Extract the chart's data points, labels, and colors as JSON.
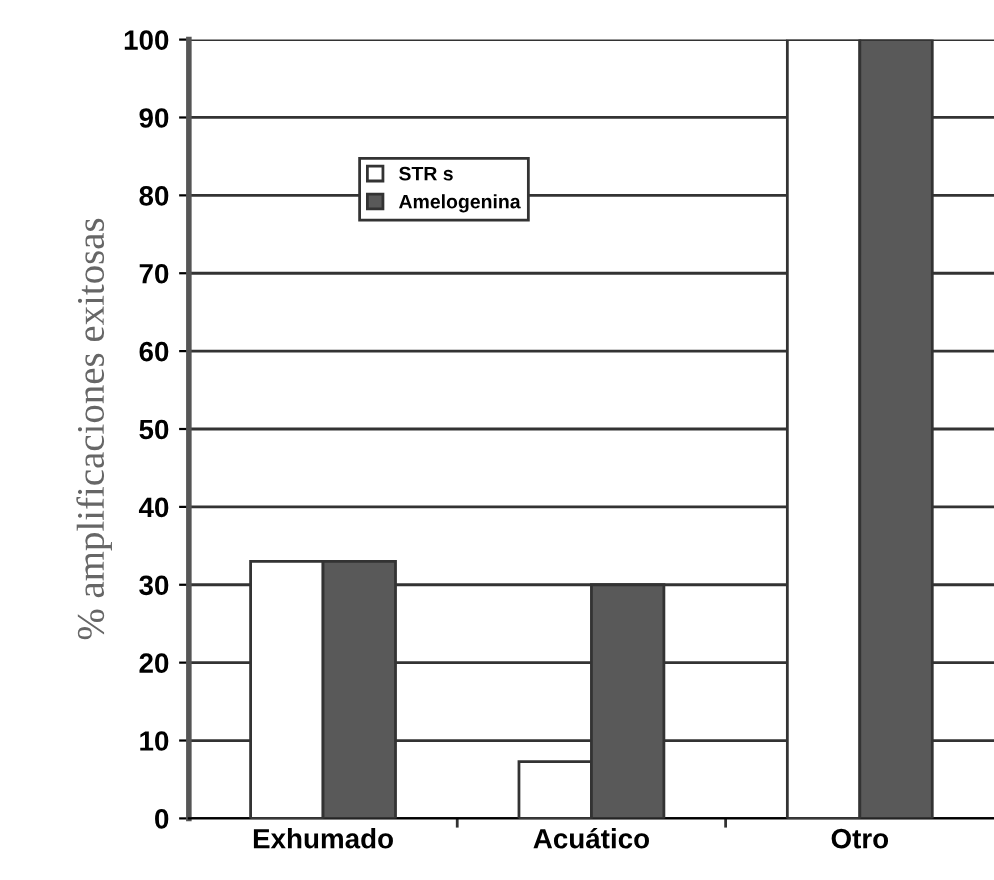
{
  "chart_data": {
    "type": "bar",
    "ylabel": "% amplificaciones exitosas",
    "categories": [
      "Exhumado",
      "Acuático",
      "Otro"
    ],
    "series": [
      {
        "name": "STR s",
        "color": "#ffffff",
        "values": [
          33,
          7.3,
          100
        ]
      },
      {
        "name": "Amelogenina",
        "color": "#595959",
        "values": [
          33,
          30,
          100
        ]
      }
    ],
    "ylim": [
      0,
      100
    ],
    "yticks": [
      0,
      10,
      20,
      30,
      40,
      50,
      60,
      70,
      80,
      90,
      100
    ],
    "grid": "y",
    "legend": "top left"
  }
}
